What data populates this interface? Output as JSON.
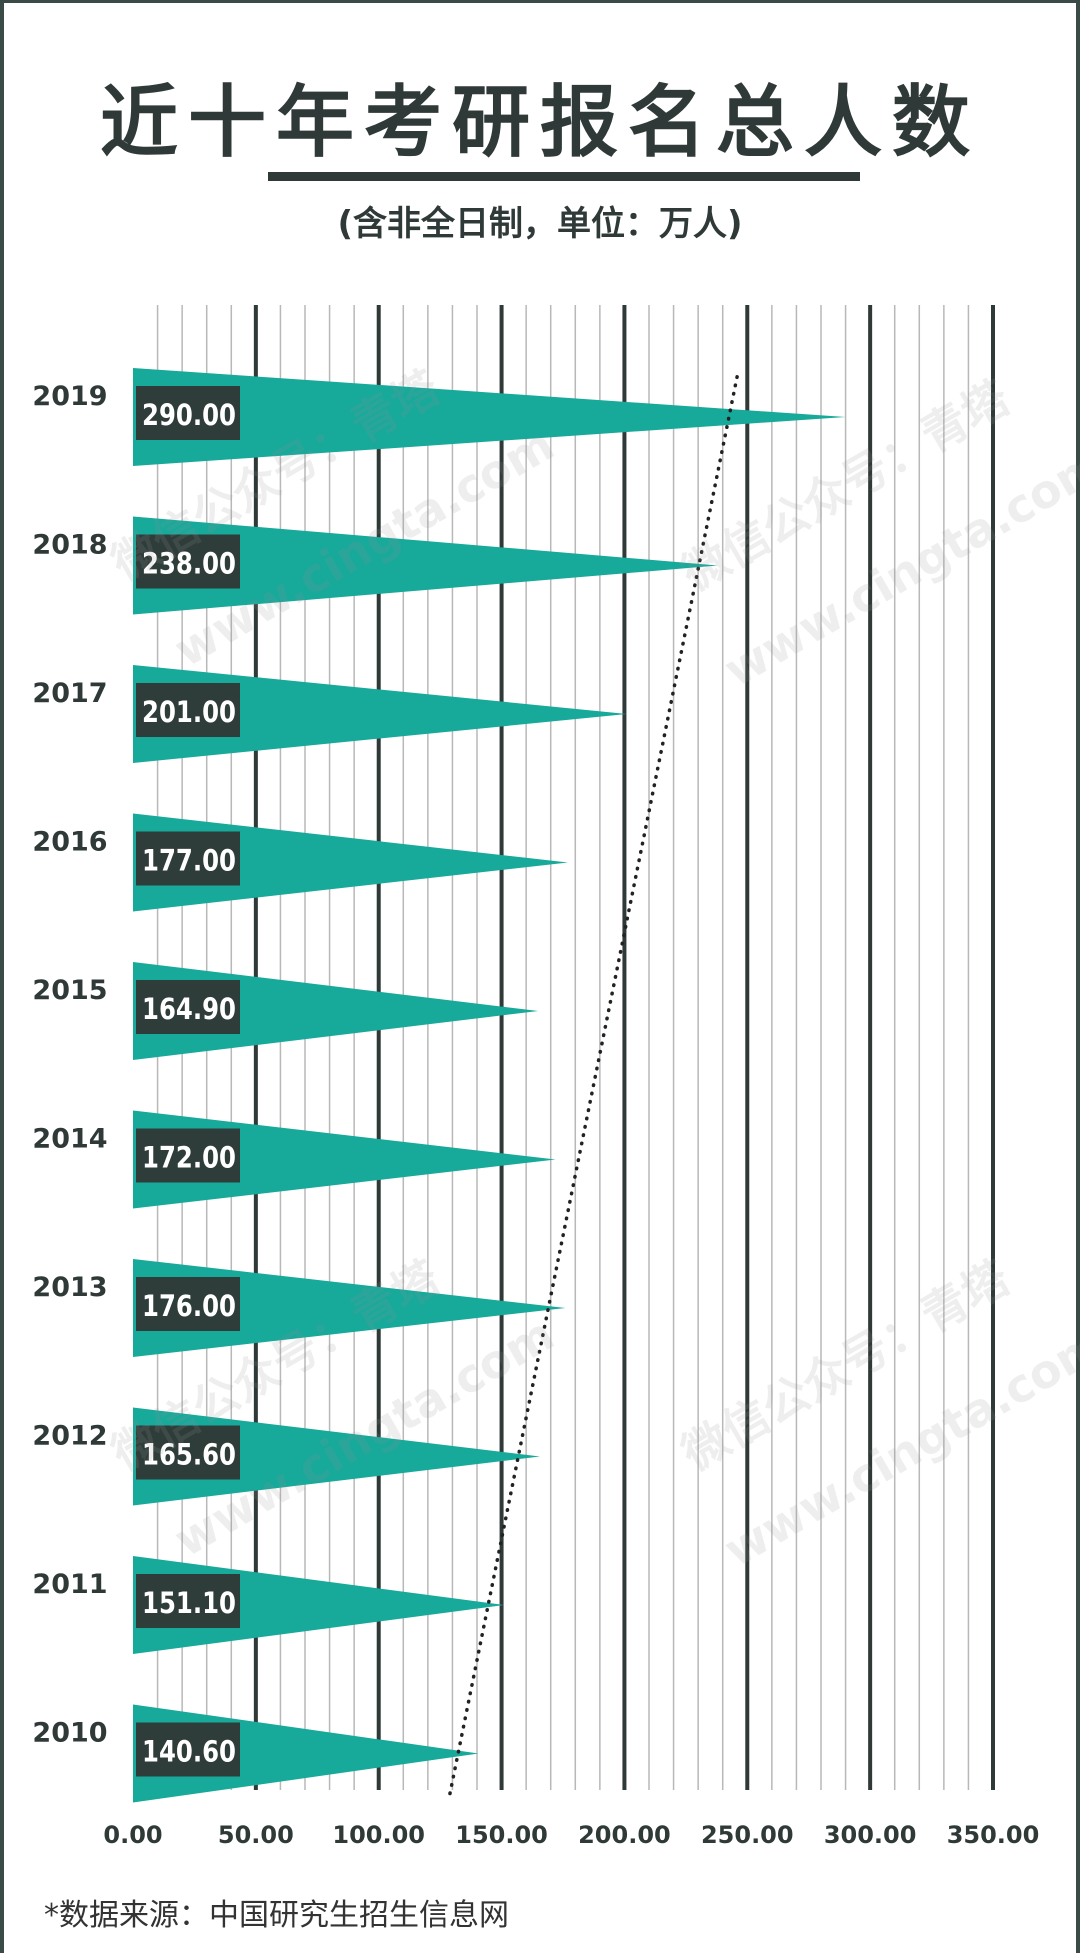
{
  "title": "近十年考研报名总人数",
  "subtitle": "(含非全日制，单位：万人)",
  "source": "*数据来源：中国研究生招生信息网",
  "watermark": {
    "line1": "微信公众号：青塔",
    "line2": "www.cingta.com"
  },
  "colors": {
    "bar": "#17a99a",
    "label_bg": "#2f3d3a",
    "label_text": "#ffffff",
    "grid_major": "#2f3a38",
    "grid_minor": "#b8b8b8",
    "text": "#2f3a38"
  },
  "chart_data": {
    "type": "bar",
    "orientation": "horizontal",
    "bar_shape": "triangle",
    "categories": [
      "2019",
      "2018",
      "2017",
      "2016",
      "2015",
      "2014",
      "2013",
      "2012",
      "2011",
      "2010"
    ],
    "values": [
      290.0,
      238.0,
      201.0,
      177.0,
      164.9,
      172.0,
      176.0,
      165.6,
      151.1,
      140.6
    ],
    "value_labels": [
      "290.00",
      "238.00",
      "201.00",
      "177.00",
      "164.90",
      "172.00",
      "176.00",
      "165.60",
      "151.10",
      "140.60"
    ],
    "xlim": [
      0,
      350
    ],
    "x_ticks": [
      "0.00",
      "50.00",
      "100.00",
      "150.00",
      "200.00",
      "250.00",
      "300.00",
      "350.00"
    ],
    "x_tick_values": [
      0,
      50,
      100,
      150,
      200,
      250,
      300,
      350
    ],
    "minor_step": 10,
    "trendline": {
      "style": "dotted",
      "type": "linear",
      "from": [
        "2010",
        129
      ],
      "to": [
        "2019",
        246
      ]
    },
    "grid": true,
    "legend": "none"
  }
}
